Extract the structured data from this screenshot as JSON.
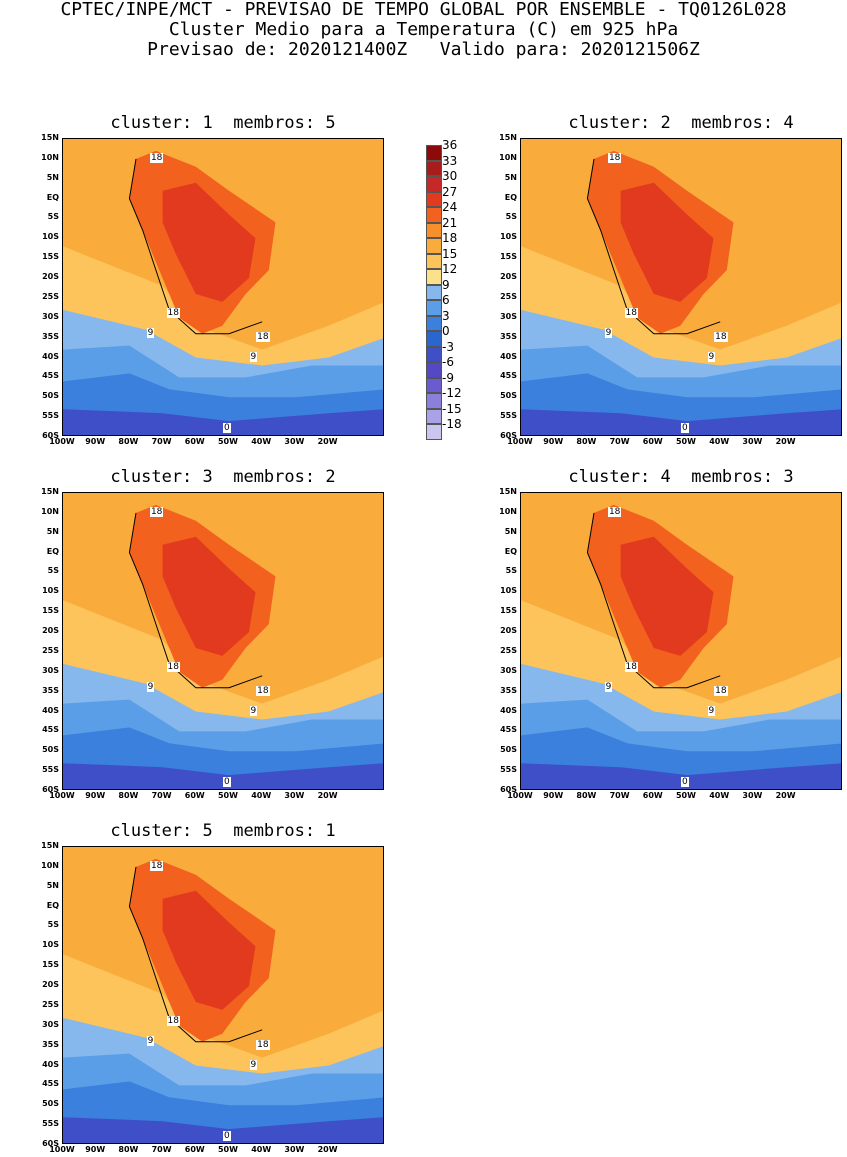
{
  "header": {
    "line1": "CPTEC/INPE/MCT - PREVISAO DE TEMPO GLOBAL POR ENSEMBLE - TQ0126L028",
    "line2": "Cluster Medio para a Temperatura (C) em 925 hPa",
    "line3": "Previsao de: 2020121400Z   Valido para: 2020121506Z"
  },
  "panels": [
    {
      "title": "cluster: 1  membros: 5"
    },
    {
      "title": "cluster: 2  membros: 4"
    },
    {
      "title": "cluster: 3  membros: 2"
    },
    {
      "title": "cluster: 4  membros: 3"
    },
    {
      "title": "cluster: 5  membros: 1"
    }
  ],
  "lat_labels": [
    "15N",
    "10N",
    "5N",
    "EQ",
    "5S",
    "10S",
    "15S",
    "20S",
    "25S",
    "30S",
    "35S",
    "40S",
    "45S",
    "50S",
    "55S",
    "60S"
  ],
  "lon_labels": [
    "100W",
    "90W",
    "80W",
    "70W",
    "60W",
    "50W",
    "40W",
    "30W",
    "20W"
  ],
  "contour_labels": [
    "18",
    "18",
    "9",
    "18",
    "9",
    "0"
  ],
  "colorbar": {
    "labels": [
      "36",
      "33",
      "30",
      "27",
      "24",
      "21",
      "18",
      "15",
      "12",
      "9",
      "6",
      "3",
      "0",
      "-3",
      "-6",
      "-9",
      "-12",
      "-15",
      "-18"
    ],
    "colors": [
      "#8b0a0a",
      "#a81c1c",
      "#c62828",
      "#e23a1e",
      "#f2611e",
      "#f7902a",
      "#f9ac3c",
      "#fcc45a",
      "#fde08a",
      "#86b8ee",
      "#5a9ee8",
      "#3a80dc",
      "#2a66d0",
      "#3f4fc8",
      "#5448c4",
      "#6a5ccf",
      "#8a7fdb",
      "#aaa2e6",
      "#cbc6f0"
    ]
  }
}
